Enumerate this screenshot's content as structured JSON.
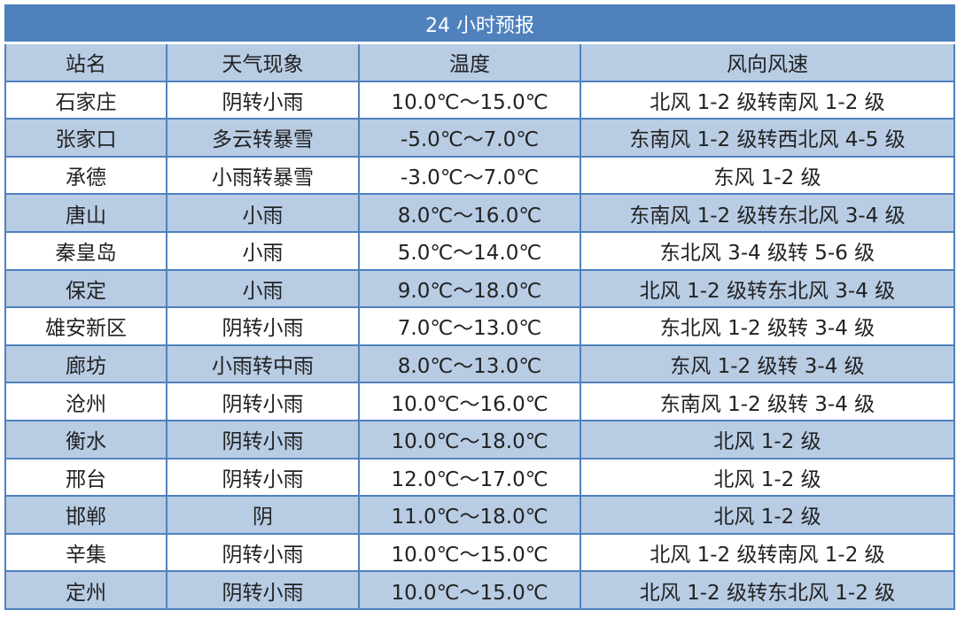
{
  "title": "24 小时预报",
  "headers": [
    "站名",
    "天气现象",
    "温度",
    "风向风速"
  ],
  "rows": [
    [
      "石家庄",
      "阴转小雨",
      "10.0℃～15.0℃",
      "北风 1-2 级转南风 1-2 级"
    ],
    [
      "张家口",
      "多云转暴雪",
      "-5.0℃～7.0℃",
      "东南风 1-2 级转西北风 4-5 级"
    ],
    [
      "承德",
      "小雨转暴雪",
      "-3.0℃～7.0℃",
      "东风 1-2 级"
    ],
    [
      "唐山",
      "小雨",
      "8.0℃～16.0℃",
      "东南风 1-2 级转东北风 3-4 级"
    ],
    [
      "秦皇岛",
      "小雨",
      "5.0℃～14.0℃",
      "东北风 3-4 级转 5-6 级"
    ],
    [
      "保定",
      "小雨",
      "9.0℃～18.0℃",
      "北风 1-2 级转东北风 3-4 级"
    ],
    [
      "雄安新区",
      "阴转小雨",
      "7.0℃～13.0℃",
      "东北风 1-2 级转 3-4 级"
    ],
    [
      "廊坊",
      "小雨转中雨",
      "8.0℃～13.0℃",
      "东风 1-2 级转 3-4 级"
    ],
    [
      "沧州",
      "阴转小雨",
      "10.0℃～16.0℃",
      "东南风 1-2 级转 3-4 级"
    ],
    [
      "衡水",
      "阴转小雨",
      "10.0℃～18.0℃",
      "北风 1-2 级"
    ],
    [
      "邢台",
      "阴转小雨",
      "12.0℃～17.0℃",
      "北风 1-2 级"
    ],
    [
      "邯郸",
      "阴",
      "11.0℃～18.0℃",
      "北风 1-2 级"
    ],
    [
      "辛集",
      "阴转小雨",
      "10.0℃～15.0℃",
      "北风 1-2 级转南风 1-2 级"
    ],
    [
      "定州",
      "阴转小雨",
      "10.0℃～15.0℃",
      "北风 1-2 级转东北风 1-2 级"
    ]
  ],
  "colors": {
    "title_bg": "#4f81bd",
    "header_bg": "#b8cce4",
    "border": "#4f81bd"
  }
}
